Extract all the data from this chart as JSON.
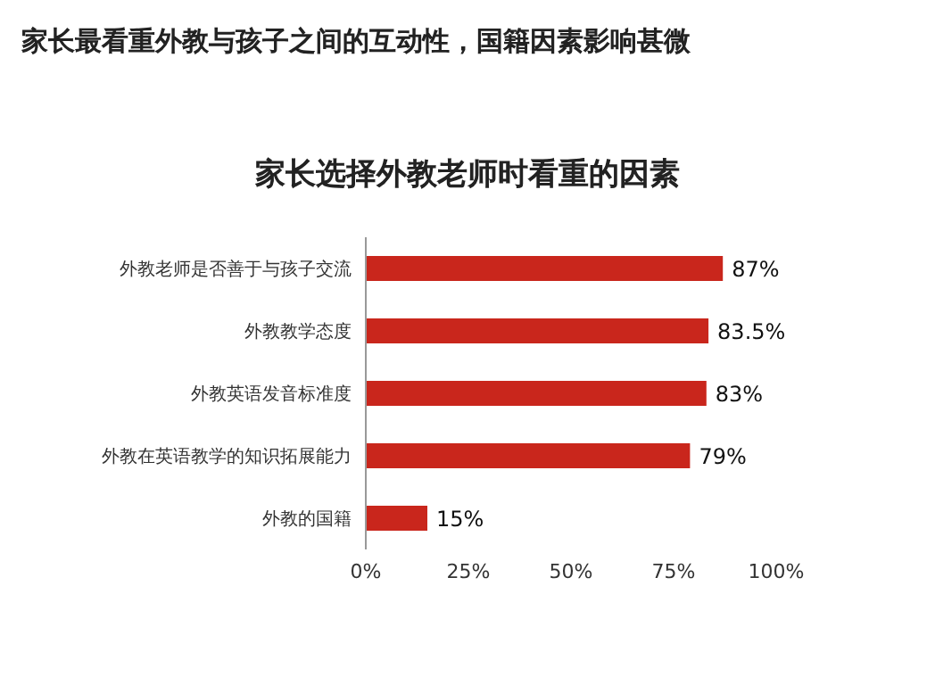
{
  "chart_data": {
    "type": "bar",
    "orientation": "horizontal",
    "title": "家长最看重外教与孩子之间的互动性，国籍因素影响甚微",
    "subtitle": "家长选择外教老师时看重的因素",
    "categories": [
      "外教老师是否善于与孩子交流",
      "外教教学态度",
      "外教英语发音标准度",
      "外教在英语教学的知识拓展能力",
      "外教的国籍"
    ],
    "values": [
      87,
      83.5,
      83,
      79,
      15
    ],
    "value_labels": [
      "87%",
      "83.5%",
      "83%",
      "79%",
      "15%"
    ],
    "color": "#c9261c",
    "xlim": [
      0,
      100
    ],
    "xticks": [
      {
        "value": 0,
        "label": "0%"
      },
      {
        "value": 25,
        "label": "25%"
      },
      {
        "value": 50,
        "label": "50%"
      },
      {
        "value": 75,
        "label": "75%"
      },
      {
        "value": 100,
        "label": "100%"
      }
    ],
    "grid": false,
    "legend": false
  }
}
